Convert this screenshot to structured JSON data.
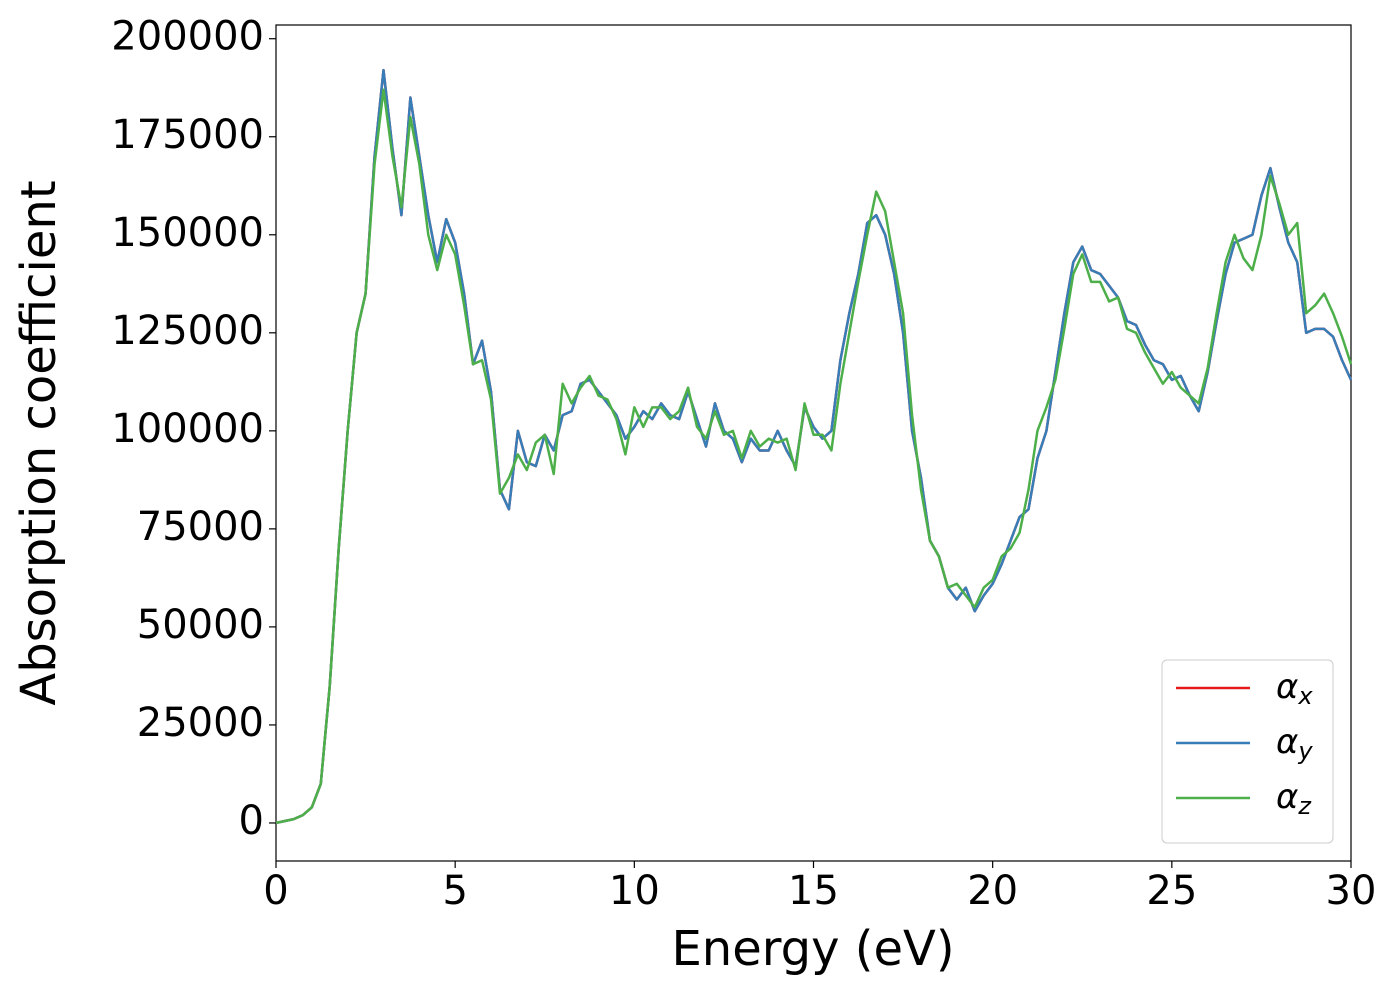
{
  "chart_data": {
    "type": "line",
    "xlabel": "Energy (eV)",
    "ylabel": "Absorption coefficient",
    "xlim": [
      0,
      30
    ],
    "xticks": [
      0,
      5,
      10,
      15,
      20,
      25,
      30
    ],
    "ylim": [
      -9700,
      203500
    ],
    "yticks": [
      0,
      25000,
      50000,
      75000,
      100000,
      125000,
      150000,
      175000,
      200000
    ],
    "legend": "lower right",
    "x": [
      0,
      0.25,
      0.5,
      0.75,
      1,
      1.25,
      1.5,
      1.75,
      2,
      2.25,
      2.5,
      2.75,
      3,
      3.25,
      3.5,
      3.75,
      4,
      4.25,
      4.5,
      4.75,
      5,
      5.25,
      5.5,
      5.75,
      6,
      6.25,
      6.5,
      6.75,
      7,
      7.25,
      7.5,
      7.75,
      8,
      8.25,
      8.5,
      8.75,
      9,
      9.25,
      9.5,
      9.75,
      10,
      10.25,
      10.5,
      10.75,
      11,
      11.25,
      11.5,
      11.75,
      12,
      12.25,
      12.5,
      12.75,
      13,
      13.25,
      13.5,
      13.75,
      14,
      14.25,
      14.5,
      14.75,
      15,
      15.25,
      15.5,
      15.75,
      16,
      16.25,
      16.5,
      16.75,
      17,
      17.25,
      17.5,
      17.75,
      18,
      18.25,
      18.5,
      18.75,
      19,
      19.25,
      19.5,
      19.75,
      20,
      20.25,
      20.5,
      20.75,
      21,
      21.25,
      21.5,
      21.75,
      22,
      22.25,
      22.5,
      22.75,
      23,
      23.25,
      23.5,
      23.75,
      24,
      24.25,
      24.5,
      24.75,
      25,
      25.25,
      25.5,
      25.75,
      26,
      26.25,
      26.5,
      26.75,
      27,
      27.25,
      27.5,
      27.75,
      28,
      28.25,
      28.5,
      28.75,
      29,
      29.25,
      29.5,
      29.75,
      30
    ],
    "series": [
      {
        "name": "αx",
        "color": "#e41a1c",
        "values": [
          0,
          500,
          1000,
          2000,
          4000,
          10000,
          35000,
          70000,
          100000,
          125000,
          135000,
          170000,
          192000,
          172000,
          155000,
          185000,
          170000,
          155000,
          143000,
          154000,
          148000,
          135000,
          117000,
          123000,
          110000,
          85000,
          80000,
          100000,
          92000,
          91000,
          99000,
          95000,
          104000,
          105000,
          112000,
          113000,
          110000,
          107000,
          104000,
          98000,
          101000,
          105000,
          103000,
          107000,
          104000,
          103000,
          110000,
          103000,
          96000,
          107000,
          100000,
          98000,
          92000,
          98000,
          95000,
          95000,
          100000,
          95000,
          91000,
          106000,
          101000,
          98000,
          100000,
          118000,
          130000,
          140000,
          153000,
          155000,
          150000,
          140000,
          125000,
          100000,
          88000,
          72000,
          68000,
          60000,
          57000,
          60000,
          54000,
          58000,
          61000,
          66000,
          72000,
          78000,
          80000,
          93000,
          100000,
          115000,
          130000,
          143000,
          147000,
          141000,
          140000,
          137000,
          134000,
          128000,
          127000,
          122000,
          118000,
          117000,
          113000,
          114000,
          109000,
          105000,
          115000,
          128000,
          140000,
          148000,
          149000,
          150000,
          160000,
          167000,
          157000,
          148000,
          143000,
          125000,
          126000,
          126000,
          124000,
          118000,
          113000
        ]
      },
      {
        "name": "αy",
        "color": "#377eb8",
        "values": [
          0,
          500,
          1000,
          2000,
          4000,
          10000,
          35000,
          70000,
          100000,
          125000,
          135000,
          170000,
          192000,
          172000,
          155000,
          185000,
          170000,
          155000,
          143000,
          154000,
          148000,
          135000,
          117000,
          123000,
          110000,
          85000,
          80000,
          100000,
          92000,
          91000,
          99000,
          95000,
          104000,
          105000,
          112000,
          113000,
          110000,
          107000,
          104000,
          98000,
          101000,
          105000,
          103000,
          107000,
          104000,
          103000,
          110000,
          103000,
          96000,
          107000,
          100000,
          98000,
          92000,
          98000,
          95000,
          95000,
          100000,
          95000,
          91000,
          106000,
          101000,
          98000,
          100000,
          118000,
          130000,
          140000,
          153000,
          155000,
          150000,
          140000,
          125000,
          100000,
          88000,
          72000,
          68000,
          60000,
          57000,
          60000,
          54000,
          58000,
          61000,
          66000,
          72000,
          78000,
          80000,
          93000,
          100000,
          115000,
          130000,
          143000,
          147000,
          141000,
          140000,
          137000,
          134000,
          128000,
          127000,
          122000,
          118000,
          117000,
          113000,
          114000,
          109000,
          105000,
          115000,
          128000,
          140000,
          148000,
          149000,
          150000,
          160000,
          167000,
          157000,
          148000,
          143000,
          125000,
          126000,
          126000,
          124000,
          118000,
          113000
        ]
      },
      {
        "name": "αz",
        "color": "#4daf4a",
        "values": [
          0,
          500,
          1000,
          2000,
          4000,
          10000,
          35000,
          70000,
          100000,
          125000,
          135000,
          168000,
          187000,
          170000,
          157000,
          180000,
          168000,
          150000,
          141000,
          150000,
          145000,
          132000,
          117000,
          118000,
          108000,
          84000,
          88000,
          94000,
          90000,
          97000,
          99000,
          89000,
          112000,
          107000,
          111000,
          114000,
          109000,
          108000,
          103000,
          94000,
          106000,
          101000,
          106000,
          106000,
          103000,
          105000,
          111000,
          101000,
          98000,
          105000,
          99000,
          100000,
          93000,
          100000,
          96000,
          98000,
          97000,
          98000,
          90000,
          107000,
          99000,
          99000,
          95000,
          112000,
          125000,
          138000,
          150000,
          161000,
          156000,
          143000,
          130000,
          104000,
          85000,
          72000,
          68000,
          60000,
          61000,
          58000,
          55000,
          60000,
          62000,
          68000,
          70000,
          74000,
          85000,
          100000,
          106000,
          113000,
          126000,
          140000,
          145000,
          138000,
          138000,
          133000,
          134000,
          126000,
          125000,
          120000,
          116000,
          112000,
          115000,
          111000,
          109000,
          107000,
          116000,
          130000,
          143000,
          150000,
          144000,
          141000,
          150000,
          165000,
          158000,
          150000,
          153000,
          130000,
          132000,
          135000,
          130000,
          124000,
          117000
        ]
      }
    ]
  }
}
